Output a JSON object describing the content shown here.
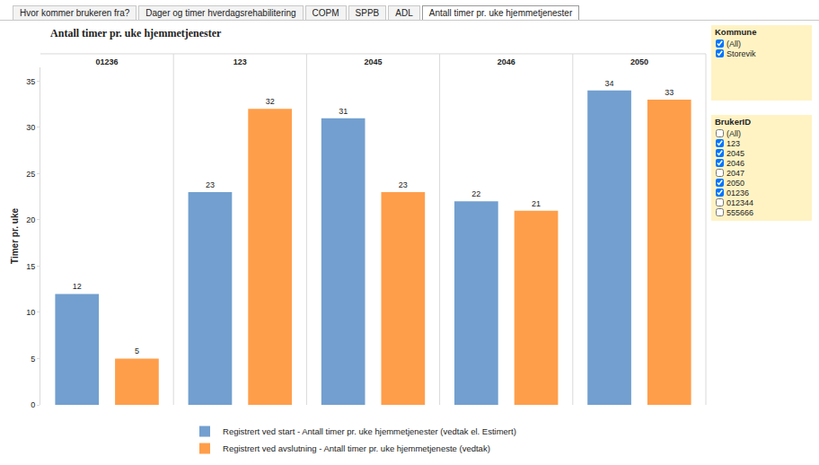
{
  "tabs": [
    "Hvor kommer brukeren fra?",
    "Dager og timer hverdagsrehabilitering",
    "COPM",
    "SPPB",
    "ADL",
    "Antall timer pr. uke hjemmetjenester"
  ],
  "active_tab": "Antall timer pr. uke hjemmetjenester",
  "filters": [
    {
      "title": "Kommune",
      "items": [
        {
          "label": "(All)",
          "checked": true
        },
        {
          "label": "Storevik",
          "checked": true
        }
      ]
    },
    {
      "title": "BrukerID",
      "items": [
        {
          "label": "(All)",
          "checked": false
        },
        {
          "label": "123",
          "checked": true
        },
        {
          "label": "2045",
          "checked": true
        },
        {
          "label": "2046",
          "checked": true
        },
        {
          "label": "2047",
          "checked": false
        },
        {
          "label": "2050",
          "checked": true
        },
        {
          "label": "01236",
          "checked": true
        },
        {
          "label": "012344",
          "checked": false
        },
        {
          "label": "555666",
          "checked": false
        }
      ]
    }
  ],
  "chart_data": {
    "type": "bar",
    "title": "Antall timer pr. uke hjemmetjenester",
    "y_label": "Timer pr. uke",
    "categories": [
      "01236",
      "123",
      "2045",
      "2046",
      "2050"
    ],
    "series": [
      {
        "name": "Registrert ved start - Antall timer pr. uke hjemmetjenester (vedtak el. Estimert)",
        "color": "#729fcf",
        "values": [
          12,
          23,
          31,
          22,
          34
        ]
      },
      {
        "name": "Registrert ved avslutning - Antall timer pr. uke hjemmetjeneste (vedtak)",
        "color": "#ff9e4a",
        "values": [
          5,
          32,
          23,
          21,
          33
        ]
      }
    ],
    "ylim": [
      0,
      36.5
    ],
    "yticks": [
      0,
      5,
      10,
      15,
      20,
      25,
      30,
      35
    ],
    "grid": false,
    "data_labels": true,
    "legend": "bottom"
  }
}
